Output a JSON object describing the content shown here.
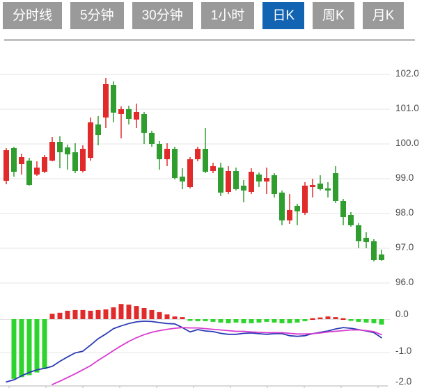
{
  "tabs": {
    "items": [
      {
        "label": "分时线",
        "active": false
      },
      {
        "label": "5分钟",
        "active": false
      },
      {
        "label": "30分钟",
        "active": false
      },
      {
        "label": "1小时",
        "active": false
      },
      {
        "label": "日K",
        "active": true
      },
      {
        "label": "周K",
        "active": false
      },
      {
        "label": "月K",
        "active": false
      }
    ],
    "active_label": "日K"
  },
  "colors": {
    "tab_bg": "#9a9a9a",
    "tab_active_bg": "#1264b2",
    "tab_text": "#ffffff",
    "candle_up_red": "#e12b2b",
    "candle_down_green": "#2f9e2f",
    "macd_bar_green": "#2dd42d",
    "macd_bar_red": "#e12b2b",
    "dif_line_blue": "#2a3ab4",
    "dea_line_magenta": "#d93ad0",
    "grid": "#e4e4e4",
    "separator": "#9e9e9e",
    "bottom_axis": "#cccccc",
    "axis_text": "#4b4b4b"
  },
  "price_axis": {
    "tick_labels": [
      "102.0",
      "101.0",
      "100.0",
      "99.0",
      "98.0",
      "97.0",
      "96.0"
    ],
    "tick_values": [
      102,
      101,
      100,
      99,
      98,
      97,
      96
    ]
  },
  "macd_axis": {
    "tick_labels": [
      "0.0",
      "-1.0",
      "-2.0"
    ],
    "tick_values": [
      0,
      -1,
      -2
    ]
  },
  "chart_data": {
    "type": "candlestick",
    "panels": [
      {
        "name": "price",
        "ylim": [
          96.0,
          102.0
        ],
        "grid": true,
        "series": [
          {
            "name": "daily-k-candles",
            "type": "candlestick",
            "up_color": "#e12b2b",
            "down_color": "#2f9e2f",
            "ohlc": [
              [
                98.94,
                99.88,
                98.84,
                99.82
              ],
              [
                99.88,
                99.92,
                99.06,
                99.2
              ],
              [
                99.42,
                99.72,
                99.12,
                99.62
              ],
              [
                99.52,
                99.6,
                98.8,
                98.82
              ],
              [
                99.12,
                99.5,
                99.08,
                99.32
              ],
              [
                99.2,
                99.68,
                99.16,
                99.62
              ],
              [
                99.52,
                100.2,
                99.5,
                100.06
              ],
              [
                100.06,
                100.22,
                99.3,
                99.76
              ],
              [
                99.9,
                99.98,
                99.26,
                99.7
              ],
              [
                99.76,
                100.02,
                99.16,
                99.22
              ],
              [
                99.22,
                99.96,
                99.18,
                99.86
              ],
              [
                99.6,
                100.76,
                99.52,
                100.62
              ],
              [
                100.56,
                100.8,
                99.96,
                100.26
              ],
              [
                100.76,
                101.9,
                100.46,
                101.72
              ],
              [
                101.7,
                101.8,
                100.62,
                100.9
              ],
              [
                100.86,
                101.08,
                100.16,
                101.0
              ],
              [
                101.0,
                101.1,
                100.56,
                100.72
              ],
              [
                100.7,
                101.16,
                100.46,
                100.92
              ],
              [
                100.86,
                100.92,
                100.0,
                100.32
              ],
              [
                100.32,
                100.38,
                99.92,
                100.0
              ],
              [
                100.0,
                100.08,
                99.26,
                99.56
              ],
              [
                99.56,
                100.02,
                99.36,
                99.86
              ],
              [
                99.86,
                99.92,
                98.98,
                99.02
              ],
              [
                99.06,
                99.3,
                98.7,
                98.92
              ],
              [
                98.76,
                99.62,
                98.72,
                99.56
              ],
              [
                99.56,
                99.92,
                99.5,
                99.86
              ],
              [
                99.86,
                100.46,
                99.16,
                99.2
              ],
              [
                99.22,
                99.46,
                99.16,
                99.36
              ],
              [
                99.32,
                99.46,
                98.5,
                98.6
              ],
              [
                98.62,
                99.36,
                98.56,
                99.22
              ],
              [
                99.22,
                99.32,
                98.66,
                98.7
              ],
              [
                98.8,
                98.96,
                98.32,
                98.66
              ],
              [
                98.62,
                99.3,
                98.56,
                99.2
              ],
              [
                99.12,
                99.18,
                98.76,
                98.92
              ],
              [
                98.92,
                99.32,
                98.56,
                99.02
              ],
              [
                99.1,
                99.16,
                98.46,
                98.56
              ],
              [
                98.6,
                98.66,
                97.66,
                97.8
              ],
              [
                97.8,
                98.56,
                97.7,
                98.1
              ],
              [
                98.22,
                98.28,
                97.66,
                98.06
              ],
              [
                98.02,
                98.9,
                97.96,
                98.8
              ],
              [
                98.76,
                99.0,
                98.46,
                98.82
              ],
              [
                98.86,
                99.1,
                98.66,
                98.7
              ],
              [
                98.72,
                98.9,
                98.46,
                98.66
              ],
              [
                99.16,
                99.36,
                98.3,
                98.36
              ],
              [
                98.36,
                98.42,
                97.66,
                97.9
              ],
              [
                97.96,
                98.04,
                97.62,
                97.66
              ],
              [
                97.66,
                97.72,
                97.0,
                97.2
              ],
              [
                97.3,
                97.46,
                97.0,
                97.18
              ],
              [
                97.2,
                97.26,
                96.62,
                96.66
              ],
              [
                96.82,
                96.96,
                96.64,
                96.66
              ]
            ]
          }
        ]
      },
      {
        "name": "macd",
        "ylim": [
          -2.0,
          0.5
        ],
        "grid": true,
        "series": [
          {
            "name": "macd-histogram",
            "type": "bar",
            "positive_color": "#e12b2b",
            "negative_color": "#2dd42d",
            "values": [
              null,
              -1.77,
              -1.72,
              -1.66,
              -1.58,
              -1.48,
              0.16,
              0.19,
              0.25,
              0.27,
              0.27,
              0.25,
              0.27,
              0.29,
              0.35,
              0.45,
              0.43,
              0.39,
              0.33,
              0.27,
              0.21,
              0.14,
              0.08,
              0.06,
              -0.04,
              -0.06,
              -0.06,
              -0.08,
              -0.1,
              -0.12,
              -0.1,
              -0.12,
              -0.12,
              -0.1,
              -0.08,
              -0.1,
              -0.12,
              -0.12,
              -0.1,
              -0.06,
              0.03,
              0.05,
              0.08,
              0.06,
              0.03,
              -0.05,
              -0.08,
              -0.1,
              -0.12,
              -0.16
            ]
          },
          {
            "name": "DIF",
            "type": "line",
            "color": "#2a3ab4",
            "values": [
              -1.86,
              -1.8,
              -1.68,
              -1.58,
              -1.5,
              -1.46,
              -1.4,
              -1.25,
              -1.12,
              -1.0,
              -0.95,
              -0.77,
              -0.58,
              -0.44,
              -0.28,
              -0.2,
              -0.13,
              -0.08,
              -0.06,
              -0.07,
              -0.1,
              -0.13,
              -0.14,
              -0.25,
              -0.38,
              -0.31,
              -0.35,
              -0.37,
              -0.42,
              -0.45,
              -0.45,
              -0.42,
              -0.41,
              -0.43,
              -0.45,
              -0.43,
              -0.43,
              -0.49,
              -0.51,
              -0.49,
              -0.43,
              -0.39,
              -0.35,
              -0.29,
              -0.25,
              -0.27,
              -0.31,
              -0.35,
              -0.4,
              -0.55
            ]
          },
          {
            "name": "DEA",
            "type": "line",
            "color": "#d93ad0",
            "values": [
              null,
              null,
              null,
              null,
              null,
              null,
              -1.94,
              -1.84,
              -1.73,
              -1.62,
              -1.5,
              -1.38,
              -1.22,
              -1.08,
              -0.93,
              -0.79,
              -0.66,
              -0.55,
              -0.46,
              -0.39,
              -0.34,
              -0.3,
              -0.27,
              -0.25,
              -0.26,
              -0.26,
              -0.28,
              -0.3,
              -0.32,
              -0.34,
              -0.36,
              -0.36,
              -0.38,
              -0.39,
              -0.4,
              -0.4,
              -0.4,
              -0.42,
              -0.44,
              -0.44,
              -0.43,
              -0.41,
              -0.38,
              -0.36,
              -0.34,
              -0.32,
              -0.32,
              -0.34,
              -0.37,
              -0.46
            ]
          }
        ]
      }
    ]
  }
}
